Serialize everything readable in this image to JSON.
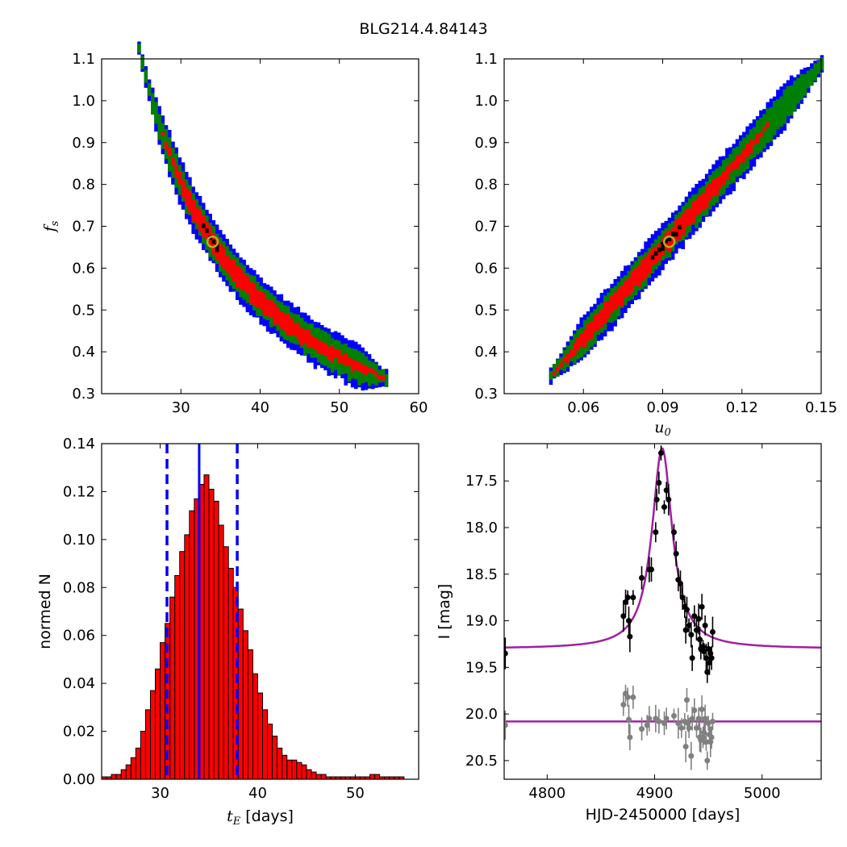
{
  "figure": {
    "title": "BLG214.4.84143"
  },
  "colors": {
    "blue": "#0000ff",
    "green": "#008000",
    "red": "#ff0000",
    "black": "#000000",
    "magenta": "#a020a0",
    "gray": "#808080",
    "best_fit_marker": "#b0b020"
  },
  "chart_data": [
    {
      "id": "fs_vs_tE",
      "type": "heatmap",
      "xlim": [
        20,
        60
      ],
      "ylim": [
        0.3,
        1.1
      ],
      "xticks": [
        "30",
        "40",
        "50",
        "60"
      ],
      "yticks": [
        "0.3",
        "0.4",
        "0.5",
        "0.6",
        "0.7",
        "0.8",
        "0.9",
        "1.0",
        "1.1"
      ],
      "xlabel": "",
      "ylabel": "f",
      "ylabel_sub": "s",
      "relation": "fs = 15.1 / (tE - 11.1)",
      "ridge_range": [
        24.5,
        56
      ],
      "levels": [
        "1 sigma (black)",
        "2 sigma (red)",
        "3 sigma (green)",
        "outer (blue)"
      ],
      "best_fit": {
        "x": 34.0,
        "y": 0.663
      }
    },
    {
      "id": "fs_vs_u0",
      "type": "heatmap",
      "xlim": [
        0.03,
        0.15
      ],
      "ylim": [
        0.3,
        1.1
      ],
      "xticks": [
        "0.06",
        "0.09",
        "0.12",
        "0.15"
      ],
      "yticks": [
        "0.3",
        "0.4",
        "0.5",
        "0.6",
        "0.7",
        "0.8",
        "0.9",
        "1.0",
        "1.1"
      ],
      "xlabel": "u",
      "xlabel_sub": "0",
      "ylabel": "",
      "relation": "fs = 0.35 + (u0 - 0.0475) * 7.25",
      "ridge_range": [
        0.047,
        0.15
      ],
      "levels": [
        "1 sigma (black)",
        "2 sigma (red)",
        "3 sigma (green)",
        "outer (blue)"
      ],
      "best_fit": {
        "x": 0.0925,
        "y": 0.663
      }
    },
    {
      "id": "tE_histogram",
      "type": "bar",
      "xlim": [
        24,
        56.5
      ],
      "ylim": [
        0,
        0.14
      ],
      "xticks": [
        "30",
        "40",
        "50"
      ],
      "yticks": [
        "0.00",
        "0.02",
        "0.04",
        "0.06",
        "0.08",
        "0.10",
        "0.12",
        "0.14"
      ],
      "xlabel": "t",
      "xlabel_sub": "E",
      "xlabel_suffix": " [days]",
      "ylabel": "normed N",
      "bin_start": 24.0,
      "bin_width": 0.5,
      "values": [
        0.001,
        0.001,
        0.002,
        0.002,
        0.004,
        0.006,
        0.009,
        0.013,
        0.02,
        0.029,
        0.037,
        0.046,
        0.057,
        0.065,
        0.076,
        0.085,
        0.095,
        0.102,
        0.112,
        0.117,
        0.123,
        0.127,
        0.121,
        0.116,
        0.106,
        0.097,
        0.088,
        0.08,
        0.071,
        0.062,
        0.054,
        0.044,
        0.036,
        0.029,
        0.023,
        0.018,
        0.013,
        0.01,
        0.008,
        0.008,
        0.007,
        0.006,
        0.004,
        0.003,
        0.002,
        0.002,
        0.001,
        0.001,
        0.001,
        0.001,
        0.001,
        0.001,
        0.001,
        0.001,
        0.001,
        0.002,
        0.002,
        0.001,
        0.001,
        0.001,
        0.001,
        0.001,
        0.0,
        0.0,
        0.0
      ],
      "median": 34.0,
      "lower": 30.7,
      "upper": 37.9
    },
    {
      "id": "light_curve",
      "type": "scatter",
      "xlim": [
        4760,
        5055
      ],
      "ylim": [
        20.7,
        17.1
      ],
      "xticks": [
        "4800",
        "4900",
        "5000"
      ],
      "yticks": [
        "17.5",
        "18.0",
        "18.5",
        "19.0",
        "19.5",
        "20.0",
        "20.5"
      ],
      "xlabel": "HJD-2450000 [days]",
      "ylabel": "I [mag]",
      "model": {
        "t0": 4907,
        "baseline": 19.3,
        "amplitude": 2.15,
        "width": 11.5,
        "shape": "I = baseline - amplitude / (1 + ((t - t0)/width)^2)"
      },
      "series": [
        {
          "color": "black",
          "values": [
            [
              4761,
              19.35
            ],
            [
              4871,
              18.95
            ],
            [
              4873,
              18.8
            ],
            [
              4875,
              18.75
            ],
            [
              4876,
              19.0
            ],
            [
              4877,
              19.17
            ],
            [
              4880,
              18.75
            ],
            [
              4888,
              18.54
            ],
            [
              4895,
              18.45
            ],
            [
              4897,
              18.45
            ],
            [
              4901,
              18.05
            ],
            [
              4902,
              17.7
            ],
            [
              4904,
              17.52
            ],
            [
              4906,
              17.2
            ],
            [
              4909,
              17.78
            ],
            [
              4911,
              17.6
            ],
            [
              4913,
              17.7
            ],
            [
              4918,
              18.05
            ],
            [
              4920,
              18.28
            ],
            [
              4922,
              18.56
            ],
            [
              4924,
              18.6
            ],
            [
              4926,
              18.75
            ],
            [
              4928,
              18.85
            ],
            [
              4929,
              19.1
            ],
            [
              4930,
              18.88
            ],
            [
              4932,
              19.05
            ],
            [
              4934,
              19.15
            ],
            [
              4935,
              19.4
            ],
            [
              4937,
              18.95
            ],
            [
              4939,
              19.1
            ],
            [
              4941,
              18.98
            ],
            [
              4942,
              19.2
            ],
            [
              4943,
              19.3
            ],
            [
              4944,
              18.85
            ],
            [
              4945,
              19.28
            ],
            [
              4946,
              19.33
            ],
            [
              4947,
              19.05
            ],
            [
              4948,
              19.4
            ],
            [
              4949,
              19.55
            ],
            [
              4950,
              19.3
            ],
            [
              4951,
              19.45
            ],
            [
              4952,
              19.35
            ],
            [
              4953,
              19.4
            ],
            [
              4954,
              19.12
            ]
          ]
        },
        {
          "color": "gray",
          "values": [
            [
              4761,
              20.12
            ],
            [
              4871,
              19.9
            ],
            [
              4873,
              19.78
            ],
            [
              4875,
              19.82
            ],
            [
              4876,
              20.06
            ],
            [
              4877,
              20.25
            ],
            [
              4880,
              19.82
            ],
            [
              4888,
              20.16
            ],
            [
              4893,
              20.12
            ],
            [
              4895,
              20.05
            ],
            [
              4901,
              20.05
            ],
            [
              4904,
              20.08
            ],
            [
              4909,
              20.1
            ],
            [
              4911,
              20.05
            ],
            [
              4918,
              20.02
            ],
            [
              4922,
              20.1
            ],
            [
              4925,
              20.15
            ],
            [
              4928,
              20.08
            ],
            [
              4929,
              20.35
            ],
            [
              4930,
              19.85
            ],
            [
              4931,
              20.1
            ],
            [
              4932,
              20.15
            ],
            [
              4934,
              20.45
            ],
            [
              4935,
              20.05
            ],
            [
              4937,
              19.96
            ],
            [
              4939,
              20.15
            ],
            [
              4941,
              20.05
            ],
            [
              4942,
              20.25
            ],
            [
              4943,
              20.28
            ],
            [
              4944,
              19.95
            ],
            [
              4945,
              20.25
            ],
            [
              4946,
              20.2
            ],
            [
              4947,
              20.05
            ],
            [
              4948,
              20.3
            ],
            [
              4949,
              20.5
            ],
            [
              4950,
              20.1
            ],
            [
              4951,
              20.22
            ],
            [
              4952,
              20.3
            ],
            [
              4953,
              20.25
            ],
            [
              4954,
              20.08
            ]
          ]
        }
      ],
      "residual_baseline": 20.08
    }
  ]
}
